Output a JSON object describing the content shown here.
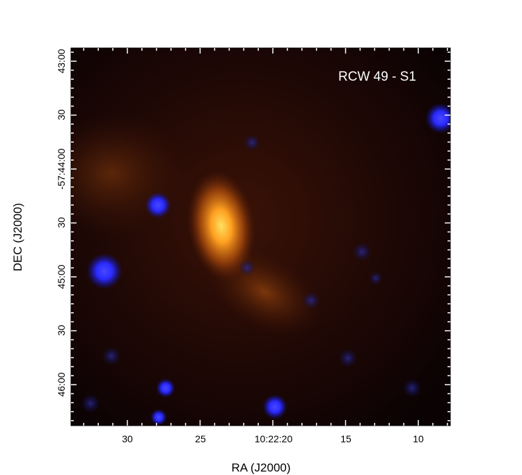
{
  "image_title": "RCW 49 - S1",
  "x_axis": {
    "label": "RA (J2000)",
    "ticks": [
      "30",
      "25",
      "10:22:20",
      "15",
      "10"
    ]
  },
  "y_axis": {
    "label": "DEC (J2000)",
    "ticks": [
      "43:00",
      "30",
      "-57:44:00",
      "30",
      "45:00",
      "30",
      "46:00"
    ]
  },
  "colors": {
    "diffuse_emission": "#ff9a1a",
    "point_sources": "#2a2aff",
    "background": "#120404"
  }
}
